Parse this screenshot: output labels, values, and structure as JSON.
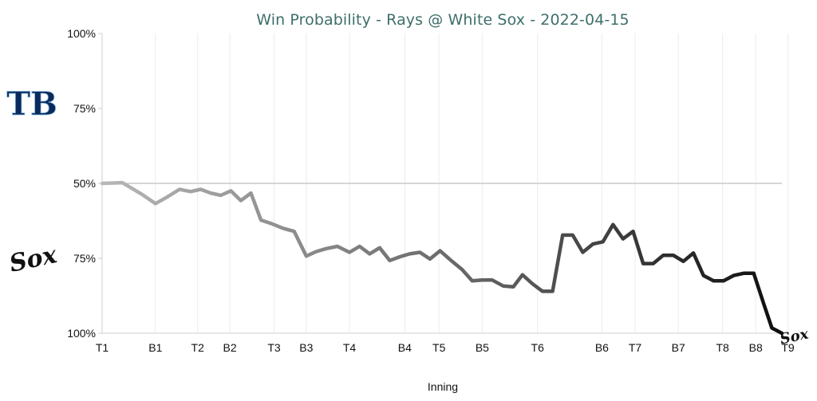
{
  "chart_data": {
    "type": "line",
    "title": "Win Probability - Rays @ White Sox - 2022-04-15",
    "xlabel": "Inning",
    "ylabel": "",
    "y_ticks": [
      "100%",
      "75%",
      "50%",
      "75%",
      "100%"
    ],
    "ylim": [
      -50,
      50
    ],
    "grid": "vertical",
    "reference_line": 0,
    "top_team": {
      "name": "Rays",
      "logo_text": "TB",
      "color": "#0b2a5b"
    },
    "bottom_team": {
      "name": "White Sox",
      "logo_text": "Sox",
      "color": "#111111"
    },
    "x_ticks": [
      {
        "label": "T1",
        "x": 0
      },
      {
        "label": "B1",
        "x": 5.3
      },
      {
        "label": "T2",
        "x": 9.5
      },
      {
        "label": "B2",
        "x": 12.7
      },
      {
        "label": "T3",
        "x": 17.1
      },
      {
        "label": "B3",
        "x": 20.3
      },
      {
        "label": "T4",
        "x": 24.6
      },
      {
        "label": "B4",
        "x": 30.1
      },
      {
        "label": "T5",
        "x": 33.5
      },
      {
        "label": "B5",
        "x": 37.8
      },
      {
        "label": "T6",
        "x": 43.3
      },
      {
        "label": "B6",
        "x": 49.7
      },
      {
        "label": "T7",
        "x": 53.0
      },
      {
        "label": "B7",
        "x": 57.3
      },
      {
        "label": "T8",
        "x": 61.7
      },
      {
        "label": "B8",
        "x": 65.0
      },
      {
        "label": "T9",
        "x": 68.2
      }
    ],
    "series": [
      {
        "values": [
          [
            0,
            0
          ],
          [
            1,
            0.2
          ],
          [
            2,
            0.5
          ],
          [
            3,
            -3.5
          ],
          [
            4,
            -7.5
          ],
          [
            5.3,
            -13.5
          ],
          [
            6.5,
            -9
          ],
          [
            7.7,
            -4
          ],
          [
            8.8,
            -5.5
          ],
          [
            9.8,
            -4
          ],
          [
            10.8,
            -6.5
          ],
          [
            11.8,
            -8
          ],
          [
            12.8,
            -5
          ],
          [
            13.8,
            -11.5
          ],
          [
            14.8,
            -6.5
          ],
          [
            15.8,
            -24.5
          ],
          [
            16.9,
            -27
          ],
          [
            18,
            -30
          ],
          [
            19.1,
            -32
          ],
          [
            20.3,
            -48.5
          ],
          [
            21.3,
            -45.5
          ],
          [
            22.3,
            -43.5
          ],
          [
            23.4,
            -42
          ],
          [
            24.6,
            -46
          ],
          [
            25.6,
            -42
          ],
          [
            26.6,
            -47
          ],
          [
            27.6,
            -43
          ],
          [
            28.6,
            -51.5
          ],
          [
            29.6,
            -49
          ],
          [
            30.6,
            -47
          ],
          [
            31.6,
            -46
          ],
          [
            32.6,
            -50.5
          ],
          [
            33.6,
            -45
          ],
          [
            34.8,
            -52
          ],
          [
            35.8,
            -57.5
          ],
          [
            36.8,
            -65
          ],
          [
            37.8,
            -64.5
          ],
          [
            38.8,
            -64.5
          ],
          [
            39.9,
            -68.5
          ],
          [
            40.9,
            -69
          ],
          [
            41.8,
            -61
          ],
          [
            42.8,
            -67
          ],
          [
            43.8,
            -72
          ],
          [
            44.8,
            -72
          ],
          [
            45.8,
            -34.5
          ],
          [
            46.8,
            -34.5
          ],
          [
            47.8,
            -46
          ],
          [
            48.8,
            -40.5
          ],
          [
            49.8,
            -39
          ],
          [
            50.8,
            -27.5
          ],
          [
            51.8,
            -37
          ],
          [
            52.8,
            -32
          ],
          [
            53.8,
            -53.5
          ],
          [
            54.8,
            -53.5
          ],
          [
            55.8,
            -48
          ],
          [
            56.8,
            -48
          ],
          [
            57.8,
            -52
          ],
          [
            58.8,
            -46.5
          ],
          [
            59.8,
            -61.5
          ],
          [
            60.8,
            -65
          ],
          [
            61.8,
            -65
          ],
          [
            62.8,
            -61.5
          ],
          [
            63.8,
            -60
          ],
          [
            64.8,
            -60
          ],
          [
            65.8,
            -80.5
          ],
          [
            66.6,
            -96.5
          ],
          [
            67.6,
            -100
          ]
        ]
      }
    ]
  }
}
